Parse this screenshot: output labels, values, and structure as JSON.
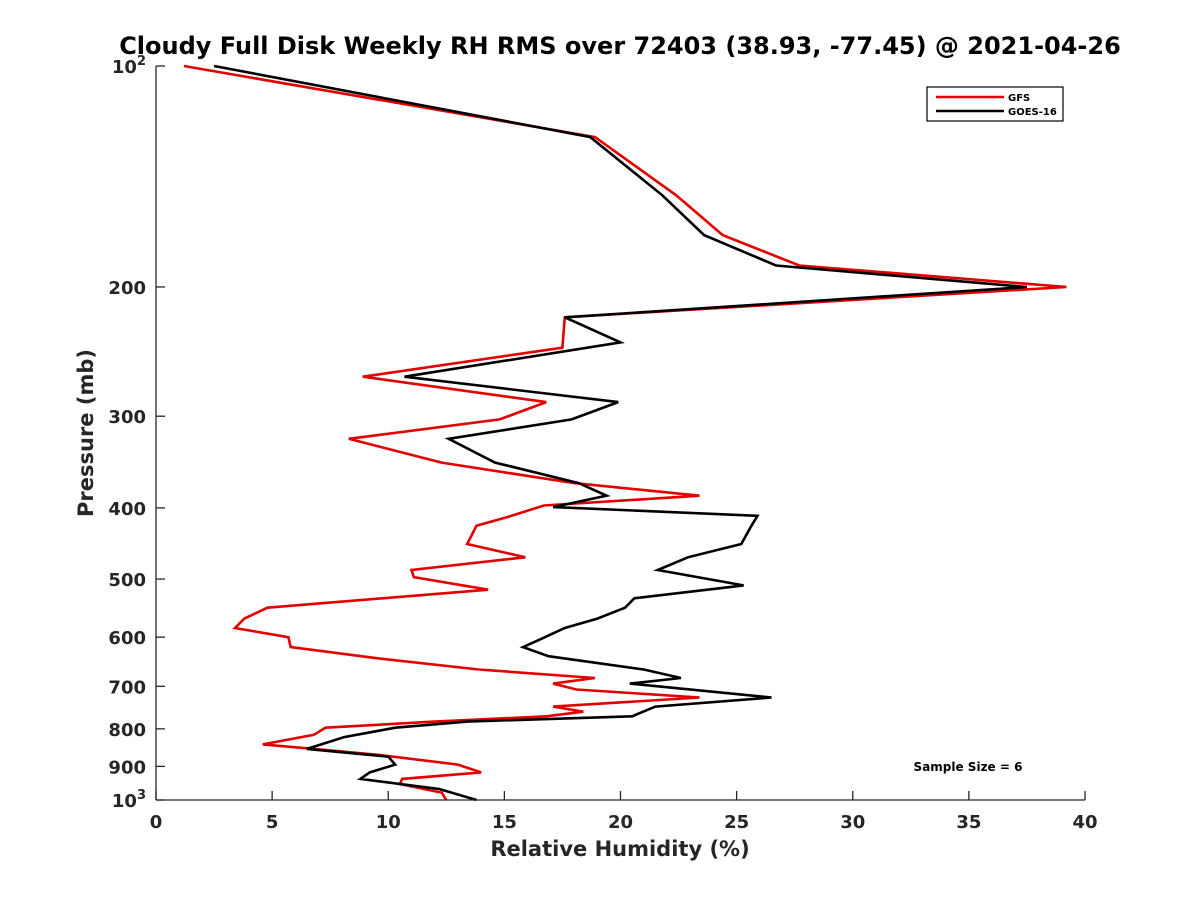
{
  "chart_data": {
    "type": "line",
    "title": "Cloudy Full Disk Weekly RH RMS over 72403 (38.93, -77.45) @ 2021-04-26",
    "xlabel": "Relative Humidity (%)",
    "ylabel": "Pressure (mb)",
    "xlim": [
      0,
      40
    ],
    "ylim": [
      100,
      1000
    ],
    "yscale": "log",
    "y_reversed": true,
    "grid": false,
    "legend_position": "top-right",
    "annotation": "Sample Size = 6",
    "xticks": [
      0,
      5,
      10,
      15,
      20,
      25,
      30,
      35,
      40
    ],
    "yticks": [
      {
        "value": 100,
        "base": "10",
        "exp": "2"
      },
      {
        "value": 200,
        "label": "200"
      },
      {
        "value": 300,
        "label": "300"
      },
      {
        "value": 400,
        "label": "400"
      },
      {
        "value": 500,
        "label": "500"
      },
      {
        "value": 600,
        "label": "600"
      },
      {
        "value": 700,
        "label": "700"
      },
      {
        "value": 800,
        "label": "800"
      },
      {
        "value": 900,
        "label": "900"
      },
      {
        "value": 1000,
        "base": "10",
        "exp": "3"
      }
    ],
    "series": [
      {
        "name": "GFS",
        "color": "#e30000",
        "points": [
          [
            1.2,
            100
          ],
          [
            18.9,
            125
          ],
          [
            22.4,
            150
          ],
          [
            24.4,
            170
          ],
          [
            27.7,
            187
          ],
          [
            39.2,
            200
          ],
          [
            17.6,
            220
          ],
          [
            17.5,
            242
          ],
          [
            8.9,
            265
          ],
          [
            16.8,
            287
          ],
          [
            14.8,
            303
          ],
          [
            8.3,
            322
          ],
          [
            12.3,
            347
          ],
          [
            18.0,
            370
          ],
          [
            23.4,
            385
          ],
          [
            16.7,
            397
          ],
          [
            15.1,
            412
          ],
          [
            13.8,
            423
          ],
          [
            13.4,
            448
          ],
          [
            15.9,
            467
          ],
          [
            11.0,
            486
          ],
          [
            11.1,
            497
          ],
          [
            14.3,
            517
          ],
          [
            4.8,
            547
          ],
          [
            3.8,
            566
          ],
          [
            3.4,
            583
          ],
          [
            5.7,
            600
          ],
          [
            5.8,
            619
          ],
          [
            9.5,
            641
          ],
          [
            13.9,
            664
          ],
          [
            18.9,
            682
          ],
          [
            17.1,
            694
          ],
          [
            18.1,
            707
          ],
          [
            23.4,
            725
          ],
          [
            17.1,
            746
          ],
          [
            18.4,
            758
          ],
          [
            16.8,
            769
          ],
          [
            12.0,
            782
          ],
          [
            7.3,
            797
          ],
          [
            6.8,
            815
          ],
          [
            4.6,
            840
          ],
          [
            6.8,
            852
          ],
          [
            9.6,
            868
          ],
          [
            13.0,
            895
          ],
          [
            14.0,
            917
          ],
          [
            10.6,
            936
          ],
          [
            10.5,
            951
          ],
          [
            12.3,
            977
          ],
          [
            12.5,
            1000
          ]
        ]
      },
      {
        "name": "GOES-16",
        "color": "#000000",
        "points": [
          [
            2.5,
            100
          ],
          [
            18.7,
            125
          ],
          [
            21.8,
            150
          ],
          [
            23.6,
            170
          ],
          [
            26.7,
            187
          ],
          [
            37.5,
            200
          ],
          [
            17.6,
            220
          ],
          [
            20.0,
            238
          ],
          [
            10.7,
            265
          ],
          [
            19.9,
            287
          ],
          [
            17.9,
            303
          ],
          [
            12.6,
            322
          ],
          [
            14.6,
            347
          ],
          [
            18.2,
            370
          ],
          [
            19.4,
            385
          ],
          [
            17.1,
            399
          ],
          [
            25.9,
            410
          ],
          [
            25.6,
            425
          ],
          [
            25.2,
            448
          ],
          [
            22.9,
            467
          ],
          [
            21.6,
            486
          ],
          [
            25.3,
            510
          ],
          [
            20.6,
            531
          ],
          [
            20.2,
            547
          ],
          [
            19.0,
            566
          ],
          [
            17.6,
            583
          ],
          [
            16.5,
            605
          ],
          [
            15.8,
            619
          ],
          [
            16.9,
            637
          ],
          [
            21.0,
            664
          ],
          [
            22.6,
            682
          ],
          [
            20.4,
            694
          ],
          [
            26.5,
            725
          ],
          [
            21.5,
            746
          ],
          [
            20.5,
            769
          ],
          [
            13.4,
            782
          ],
          [
            10.3,
            797
          ],
          [
            8.1,
            821
          ],
          [
            6.5,
            852
          ],
          [
            10.0,
            873
          ],
          [
            10.3,
            895
          ],
          [
            9.2,
            917
          ],
          [
            8.8,
            936
          ],
          [
            12.2,
            966
          ],
          [
            13.8,
            1000
          ]
        ]
      }
    ]
  }
}
